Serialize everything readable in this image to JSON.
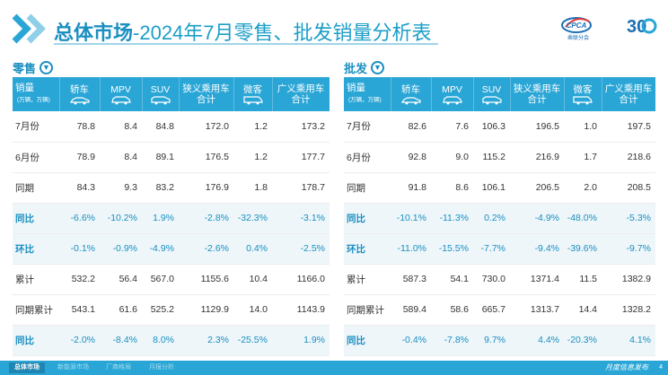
{
  "header": {
    "title_bold": "总体市场",
    "title_rest": "-2024年7月零售、批发销量分析表",
    "logo_text": "CPCA",
    "logo_sub": "乘联分会",
    "logo_badge": "30"
  },
  "columns": {
    "corner_label": "销量",
    "corner_unit": "(万辆，万辆)",
    "sedan": "轿车",
    "mpv": "MPV",
    "suv": "SUV",
    "narrow_line1": "狭义乘用车",
    "narrow_line2": "合计",
    "bus": "微客",
    "broad_line1": "广义乘用车",
    "broad_line2": "合计"
  },
  "retail": {
    "label": "零售",
    "rows": [
      {
        "label": "7月份",
        "type": "value",
        "values": [
          "78.8",
          "8.4",
          "84.8",
          "172.0",
          "1.2",
          "173.2"
        ]
      },
      {
        "label": "6月份",
        "type": "value",
        "values": [
          "78.9",
          "8.4",
          "89.1",
          "176.5",
          "1.2",
          "177.7"
        ]
      },
      {
        "label": "同期",
        "type": "value",
        "values": [
          "84.3",
          "9.3",
          "83.2",
          "176.9",
          "1.8",
          "178.7"
        ]
      },
      {
        "label": "同比",
        "type": "rate",
        "values": [
          "-6.6%",
          "-10.2%",
          "1.9%",
          "-2.8%",
          "-32.3%",
          "-3.1%"
        ]
      },
      {
        "label": "环比",
        "type": "rate",
        "values": [
          "-0.1%",
          "-0.9%",
          "-4.9%",
          "-2.6%",
          "0.4%",
          "-2.5%"
        ]
      },
      {
        "label": "累计",
        "type": "value",
        "values": [
          "532.2",
          "56.4",
          "567.0",
          "1155.6",
          "10.4",
          "1166.0"
        ]
      },
      {
        "label": "同期累计",
        "type": "value",
        "values": [
          "543.1",
          "61.6",
          "525.2",
          "1129.9",
          "14.0",
          "1143.9"
        ]
      },
      {
        "label": "同比",
        "type": "rate",
        "values": [
          "-2.0%",
          "-8.4%",
          "8.0%",
          "2.3%",
          "-25.5%",
          "1.9%"
        ]
      }
    ]
  },
  "wholesale": {
    "label": "批发",
    "rows": [
      {
        "label": "7月份",
        "type": "value",
        "values": [
          "82.6",
          "7.6",
          "106.3",
          "196.5",
          "1.0",
          "197.5"
        ]
      },
      {
        "label": "6月份",
        "type": "value",
        "values": [
          "92.8",
          "9.0",
          "115.2",
          "216.9",
          "1.7",
          "218.6"
        ]
      },
      {
        "label": "同期",
        "type": "value",
        "values": [
          "91.8",
          "8.6",
          "106.1",
          "206.5",
          "2.0",
          "208.5"
        ]
      },
      {
        "label": "同比",
        "type": "rate",
        "values": [
          "-10.1%",
          "-11.3%",
          "0.2%",
          "-4.9%",
          "-48.0%",
          "-5.3%"
        ]
      },
      {
        "label": "环比",
        "type": "rate",
        "values": [
          "-11.0%",
          "-15.5%",
          "-7.7%",
          "-9.4%",
          "-39.6%",
          "-9.7%"
        ]
      },
      {
        "label": "累计",
        "type": "value",
        "values": [
          "587.3",
          "54.1",
          "730.0",
          "1371.4",
          "11.5",
          "1382.9"
        ]
      },
      {
        "label": "同期累计",
        "type": "value",
        "values": [
          "589.4",
          "58.6",
          "665.7",
          "1313.7",
          "14.4",
          "1328.2"
        ]
      },
      {
        "label": "同比",
        "type": "rate",
        "values": [
          "-0.4%",
          "-7.8%",
          "9.7%",
          "4.4%",
          "-20.3%",
          "4.1%"
        ]
      }
    ]
  },
  "footer": {
    "tabs": [
      "总体市场",
      "新能源市场",
      "厂商格局",
      "月报分析"
    ],
    "report": "月度信息发布",
    "page": "4"
  },
  "colors": {
    "accent": "#1a8fc0",
    "header_fill": "#2aa6d6",
    "rate_row_bg": "#eef6fa"
  },
  "icons": {
    "title": "double-chevron-right-icon",
    "retail": "arrow-down-circle-icon",
    "wholesale": "arrow-down-circle-icon",
    "columns": [
      "sedan-icon",
      "mpv-icon",
      "suv-icon",
      "car-icon",
      "van-icon",
      "car-icon"
    ]
  }
}
